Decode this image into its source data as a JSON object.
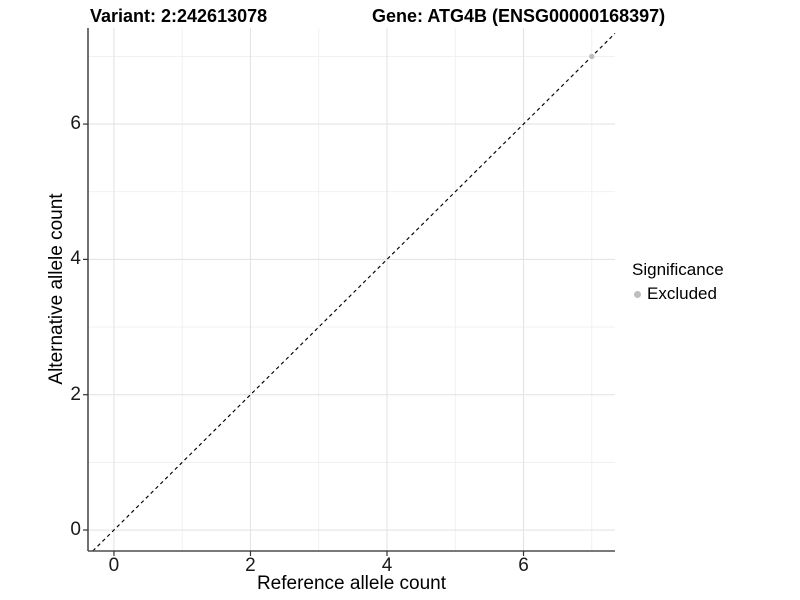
{
  "chart_data": {
    "type": "scatter",
    "titles": {
      "left": "Variant: 2:242613078",
      "right": "Gene: ATG4B (ENSG00000168397)"
    },
    "xlabel": "Reference allele count",
    "ylabel": "Alternative allele count",
    "xlim": [
      -0.38,
      7.34
    ],
    "ylim": [
      -0.31,
      7.42
    ],
    "x_major_ticks": [
      0,
      2,
      4,
      6
    ],
    "y_major_ticks": [
      0,
      2,
      4,
      6
    ],
    "x_minor_ticks": [
      1,
      3,
      5,
      7
    ],
    "y_minor_ticks": [
      1,
      3,
      5,
      7
    ],
    "grid": "major-and-minor",
    "points": [
      {
        "x": 7,
        "y": 7,
        "series": "Excluded",
        "color": "#bebebe"
      }
    ],
    "identity_line": {
      "slope": 1,
      "intercept": 0,
      "style": "dashed",
      "color": "#000000"
    },
    "legend": {
      "title": "Significance",
      "position": "right",
      "entries": [
        {
          "label": "Excluded",
          "color": "#bebebe"
        }
      ]
    },
    "colors": {
      "panel_background": "#ffffff",
      "grid_major": "#e4e4e4",
      "grid_minor": "#efefef",
      "axis_line": "#4d4d4d",
      "tick_mark": "#333333",
      "text": "#000000"
    }
  }
}
